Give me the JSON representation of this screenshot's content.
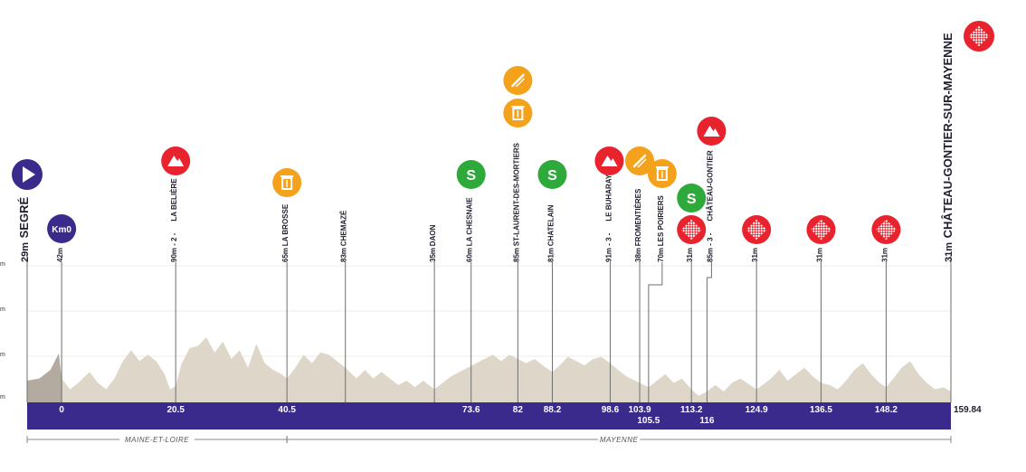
{
  "chart_data": {
    "type": "area",
    "title": "",
    "xlabel": "",
    "ylabel": "",
    "x_start_km": -6.2,
    "x_end_km": 159.84,
    "finish_label": "159.84",
    "y_tick_labels": [
      "m",
      "m",
      "m",
      "m"
    ],
    "profile_points": [
      [
        -6.2,
        60
      ],
      [
        -4,
        62
      ],
      [
        -2,
        70
      ],
      [
        -0.5,
        85
      ],
      [
        0,
        62
      ],
      [
        1.5,
        52
      ],
      [
        3,
        58
      ],
      [
        5,
        68
      ],
      [
        6.5,
        58
      ],
      [
        8,
        52
      ],
      [
        9.5,
        62
      ],
      [
        11,
        78
      ],
      [
        12.5,
        88
      ],
      [
        14,
        78
      ],
      [
        15.5,
        84
      ],
      [
        17,
        78
      ],
      [
        18.5,
        66
      ],
      [
        19.5,
        52
      ],
      [
        20.5,
        55
      ],
      [
        21.5,
        75
      ],
      [
        23,
        90
      ],
      [
        24.5,
        92
      ],
      [
        26,
        100
      ],
      [
        27.5,
        86
      ],
      [
        29,
        96
      ],
      [
        30.5,
        80
      ],
      [
        32,
        88
      ],
      [
        33.5,
        72
      ],
      [
        35,
        94
      ],
      [
        36.5,
        76
      ],
      [
        38,
        70
      ],
      [
        39.5,
        66
      ],
      [
        40.5,
        62
      ],
      [
        42,
        72
      ],
      [
        43.5,
        84
      ],
      [
        45,
        76
      ],
      [
        46.5,
        86
      ],
      [
        48,
        84
      ],
      [
        49.5,
        78
      ],
      [
        51,
        72
      ],
      [
        53,
        62
      ],
      [
        54.5,
        70
      ],
      [
        56,
        62
      ],
      [
        57.5,
        68
      ],
      [
        59,
        62
      ],
      [
        60.5,
        56
      ],
      [
        62,
        60
      ],
      [
        63.5,
        54
      ],
      [
        65,
        60
      ],
      [
        67,
        52
      ],
      [
        68.5,
        58
      ],
      [
        70,
        64
      ],
      [
        71.5,
        68
      ],
      [
        73,
        72
      ],
      [
        74.5,
        76
      ],
      [
        76,
        80
      ],
      [
        77.5,
        84
      ],
      [
        79,
        78
      ],
      [
        80.5,
        84
      ],
      [
        82,
        80
      ],
      [
        83.5,
        76
      ],
      [
        85,
        80
      ],
      [
        86.5,
        74
      ],
      [
        88.2,
        68
      ],
      [
        89.5,
        74
      ],
      [
        91,
        82
      ],
      [
        92.5,
        78
      ],
      [
        94,
        74
      ],
      [
        95.5,
        80
      ],
      [
        97,
        82
      ],
      [
        98.6,
        76
      ],
      [
        100,
        70
      ],
      [
        101.5,
        64
      ],
      [
        103.9,
        58
      ],
      [
        105.5,
        54
      ],
      [
        107,
        60
      ],
      [
        108.5,
        66
      ],
      [
        110,
        58
      ],
      [
        111.5,
        62
      ],
      [
        113.2,
        52
      ],
      [
        114.5,
        46
      ],
      [
        116,
        50
      ],
      [
        117.5,
        56
      ],
      [
        119,
        50
      ],
      [
        120.5,
        58
      ],
      [
        122,
        62
      ],
      [
        124.9,
        52
      ],
      [
        126,
        56
      ],
      [
        127.5,
        62
      ],
      [
        129,
        70
      ],
      [
        130.5,
        60
      ],
      [
        132,
        66
      ],
      [
        133.5,
        72
      ],
      [
        135,
        64
      ],
      [
        136.5,
        58
      ],
      [
        138,
        56
      ],
      [
        139.5,
        52
      ],
      [
        141,
        60
      ],
      [
        142.5,
        70
      ],
      [
        144,
        76
      ],
      [
        145.5,
        66
      ],
      [
        147,
        58
      ],
      [
        148.2,
        54
      ],
      [
        149.5,
        62
      ],
      [
        151,
        72
      ],
      [
        152.5,
        78
      ],
      [
        154,
        66
      ],
      [
        155.5,
        58
      ],
      [
        157,
        52
      ],
      [
        158.5,
        54
      ],
      [
        159.84,
        50
      ]
    ],
    "gray_until_km": 0,
    "waypoints": [
      {
        "km": "",
        "x": -6.2,
        "alt": "29m",
        "name": "SEGRÉ",
        "major": true,
        "icon": "start-icon"
      },
      {
        "km": "0",
        "x": 0,
        "alt": "42m",
        "name": "",
        "major": false,
        "icon": "km0-badge",
        "badge": "Km0"
      },
      {
        "km": "20.5",
        "x": 20.5,
        "alt": "90m - 2 -",
        "name": "LA BELIÈRE",
        "major": false,
        "icon": "climb-icon"
      },
      {
        "km": "40.5",
        "x": 40.5,
        "alt": "65m",
        "name": "LA BROSSE",
        "major": false,
        "icon": "waste-zone-icon"
      },
      {
        "km": "",
        "x": 51,
        "alt": "83m",
        "name": "CHEMAZÉ",
        "major": false,
        "icon": ""
      },
      {
        "km": "",
        "x": 67,
        "alt": "35m",
        "name": "DAON",
        "major": false,
        "icon": ""
      },
      {
        "km": "73.6",
        "x": 73.6,
        "alt": "60m",
        "name": "LA CHESNAIE",
        "major": false,
        "icon": "sprint-icon"
      },
      {
        "km": "82",
        "x": 82,
        "alt": "85m",
        "name": "ST-LAURENT-DES-MORTIERS",
        "major": false,
        "icon": "feed-zone-icon"
      },
      {
        "km": "88.2",
        "x": 88.2,
        "alt": "81m",
        "name": "CHATELAIN",
        "major": false,
        "icon": "sprint-icon"
      },
      {
        "km": "98.6",
        "x": 98.6,
        "alt": "91m - 3 -",
        "name": "LE BUHARAY",
        "major": false,
        "icon": "climb-icon"
      },
      {
        "km": "103.9",
        "x": 103.9,
        "alt": "38m",
        "name": "FROMENTIÈRES",
        "major": false,
        "icon": "feed-icon"
      },
      {
        "km": "105.5",
        "x": 105.5,
        "alt": "70m",
        "name": "LES POIRIERS",
        "major": false,
        "icon": "waste-zone-icon"
      },
      {
        "km": "113.2",
        "x": 113.2,
        "alt": "31m",
        "name": "",
        "major": false,
        "icon": "sprint-finish-icon"
      },
      {
        "km": "116",
        "x": 116,
        "alt": "85m - 3 -",
        "name": "CHÂTEAU-GONTIER",
        "major": false,
        "icon": "climb-icon"
      },
      {
        "km": "124.9",
        "x": 124.9,
        "alt": "31m",
        "name": "",
        "major": false,
        "icon": "finish-line-icon"
      },
      {
        "km": "136.5",
        "x": 136.5,
        "alt": "31m",
        "name": "",
        "major": false,
        "icon": "finish-line-icon"
      },
      {
        "km": "148.2",
        "x": 148.2,
        "alt": "31m",
        "name": "",
        "major": false,
        "icon": "finish-line-icon"
      },
      {
        "km": "",
        "x": 159.84,
        "alt": "31m",
        "name": "CHÂTEAU-GONTIER-SUR-MAYENNE",
        "major": true,
        "icon": "finish-icon"
      }
    ],
    "regions": [
      {
        "name": "MAINE-ET-LOIRE",
        "from": -6.2,
        "to": 40.5
      },
      {
        "name": "MAYENNE",
        "from": 40.5,
        "to": 159.84
      }
    ]
  },
  "colors": {
    "bar": "#3a2a8c",
    "terrain": "#ddd6c9",
    "terrain_dark": "#b3aba0",
    "climb": "#e8232e",
    "waste": "#f4a21b",
    "sprint": "#2eaa3a",
    "start": "#3a2a8c",
    "finish": "#e8232e"
  }
}
